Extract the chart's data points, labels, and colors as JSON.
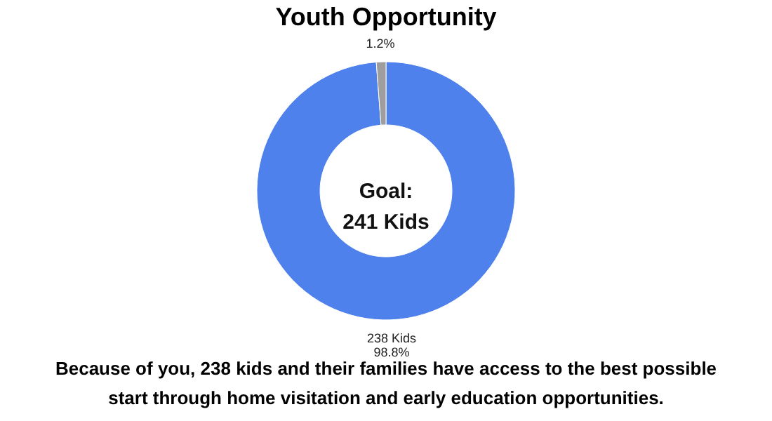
{
  "chart_data": {
    "type": "donut",
    "title": "Youth Opportunity",
    "categories": [
      "238 Kids",
      null
    ],
    "values": [
      98.8,
      1.2
    ],
    "value_labels": [
      "98.8%",
      "1.2%"
    ],
    "colors": [
      "#4f81ec",
      "#9e9e9e"
    ],
    "legend": false,
    "annotations": [
      "Goal:\n241 Kids",
      "Because of you, 238 kids and their families have access to the best possible start through home visitation and early education opportunities."
    ]
  }
}
